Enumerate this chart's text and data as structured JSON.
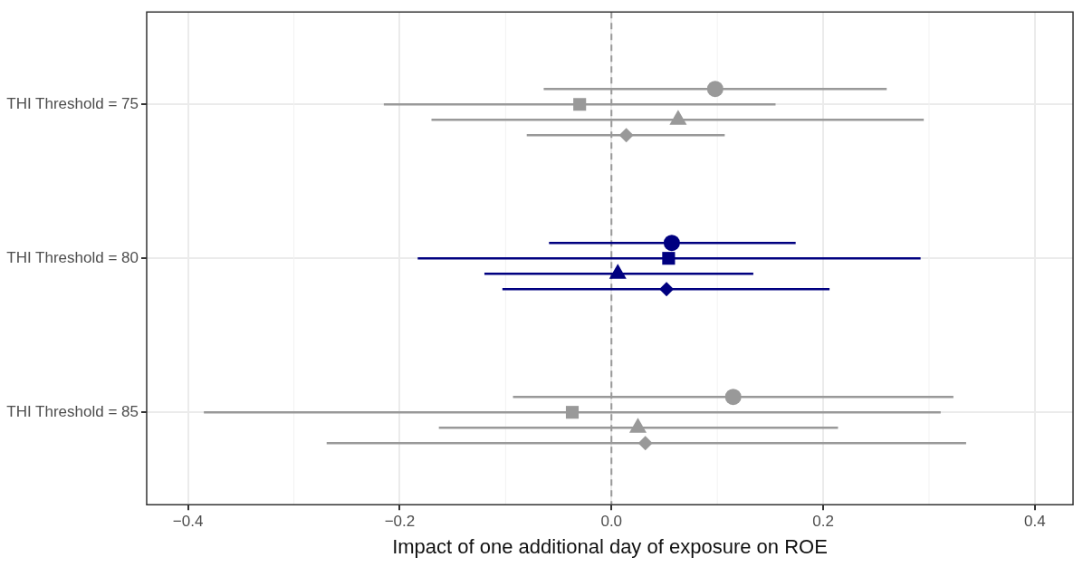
{
  "chart_data": {
    "type": "scatter",
    "orientation": "horizontal",
    "xlabel": "Impact of one additional day of exposure on ROE",
    "categories": [
      "THI Threshold = 75",
      "THI Threshold = 80",
      "THI Threshold = 85"
    ],
    "xlim": [
      -0.439,
      0.436
    ],
    "xticks": [
      {
        "value": -0.4,
        "label": "−0.4"
      },
      {
        "value": -0.2,
        "label": "−0.2"
      },
      "0.0",
      0.2,
      0.4
    ],
    "series": [
      {
        "marker": "circle",
        "colors": [
          "#999999",
          "#000080",
          "#999999"
        ],
        "values": [
          0.098,
          0.057,
          0.115
        ],
        "errors": [
          [
            -0.064,
            0.26
          ],
          [
            -0.059,
            0.174
          ],
          [
            -0.093,
            0.323
          ]
        ]
      },
      {
        "marker": "square",
        "colors": [
          "#999999",
          "#000080",
          "#999999"
        ],
        "values": [
          -0.03,
          0.054,
          -0.037
        ],
        "errors": [
          [
            -0.215,
            0.155
          ],
          [
            -0.183,
            0.292
          ],
          [
            -0.385,
            0.311
          ]
        ]
      },
      {
        "marker": "triangle",
        "colors": [
          "#999999",
          "#000080",
          "#999999"
        ],
        "values": [
          0.063,
          0.006,
          0.025
        ],
        "errors": [
          [
            -0.17,
            0.295
          ],
          [
            -0.12,
            0.134
          ],
          [
            -0.163,
            0.214
          ]
        ]
      },
      {
        "marker": "diamond",
        "colors": [
          "#999999",
          "#000080",
          "#999999"
        ],
        "values": [
          0.014,
          0.052,
          0.032
        ],
        "errors": [
          [
            -0.08,
            0.107
          ],
          [
            -0.103,
            0.206
          ],
          [
            -0.269,
            0.335
          ]
        ]
      }
    ],
    "ref_lines": [
      {
        "axis": "x",
        "value": 0,
        "color": "#999999",
        "line_style": "dashed"
      }
    ],
    "grid": true,
    "legend": false
  }
}
